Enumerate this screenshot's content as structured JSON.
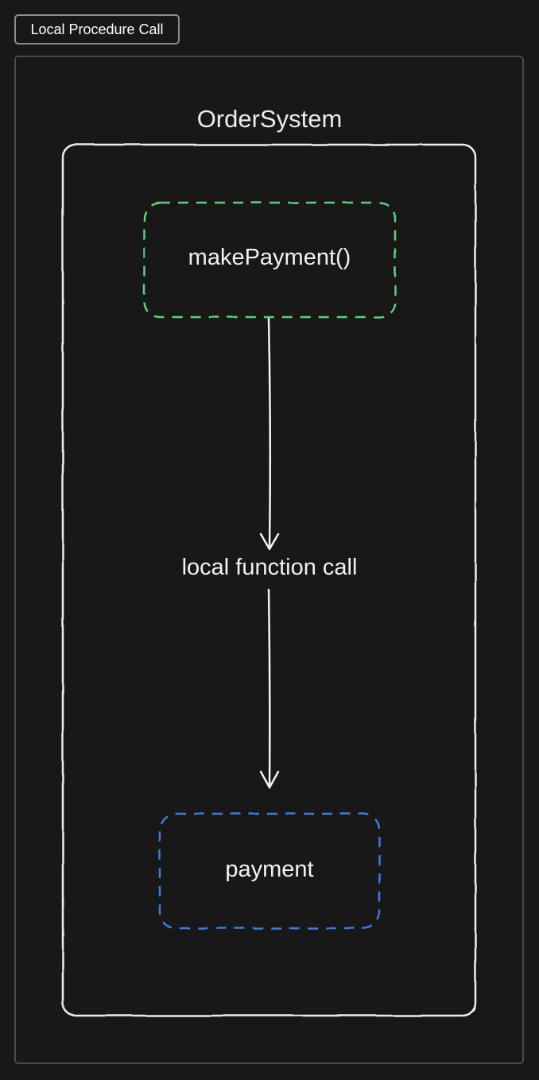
{
  "tab": {
    "label": "Local Procedure Call"
  },
  "diagram": {
    "container": {
      "label": "OrderSystem",
      "stroke": "#ececec"
    },
    "nodes": [
      {
        "id": "makePayment",
        "label": "makePayment()",
        "border": "dashed",
        "color": "#5fce7a"
      },
      {
        "id": "payment",
        "label": "payment",
        "border": "dashed",
        "color": "#3b7de0"
      }
    ],
    "edges": [
      {
        "from": "makePayment",
        "to": "payment",
        "label": "local function call"
      }
    ]
  }
}
